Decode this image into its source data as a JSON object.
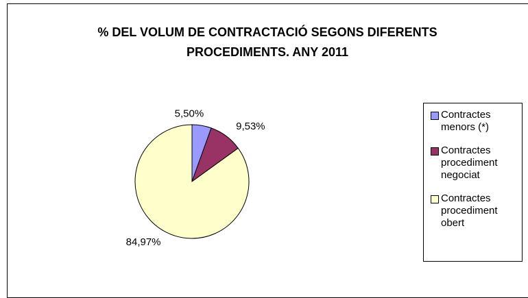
{
  "chart_data": {
    "type": "pie",
    "title": "% DEL VOLUM DE CONTRACTACIÓ SEGONS DIFERENTS PROCEDIMENTS.  ANY 2011",
    "categories": [
      "Contractes menors  (*)",
      "Contractes procediment negociat",
      "Contractes procediment obert"
    ],
    "values": [
      5.5,
      9.53,
      84.97
    ],
    "value_labels": [
      "5,50%",
      "9,53%",
      "84,97%"
    ],
    "colors": [
      "#9999ff",
      "#993366",
      "#ffffcc"
    ],
    "legend": "right"
  }
}
